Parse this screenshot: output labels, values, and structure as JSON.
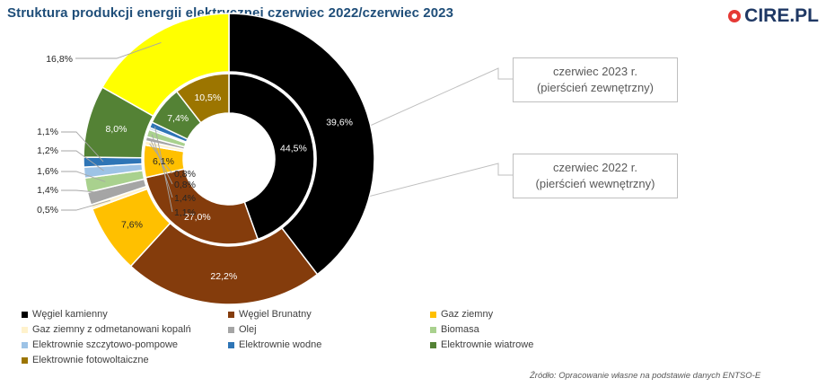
{
  "title": "Struktura produkcji energii elektrycznej  czerwiec 2022/czerwiec 2023",
  "logo": {
    "text": "CIRE.PL",
    "accent_color": "#e53935",
    "icon": "cire-logo-dot-icon"
  },
  "source": "Źródło: Opracowanie własne na podstawie danych ENTSO-E",
  "callouts": {
    "outer": {
      "line1": "czerwiec 2023 r.",
      "line2": "(pierścień zewnętrzny)"
    },
    "inner": {
      "line1": "czerwiec 2022 r.",
      "line2": "(pierścień wewnętrzny)"
    }
  },
  "chart_data": {
    "type": "pie",
    "subtype": "donut-two-rings",
    "title": "Struktura produkcji energii elektrycznej  czerwiec 2022/czerwiec 2023",
    "categories": [
      "Węgiel kamienny",
      "Węgiel Brunatny",
      "Gaz  ziemny",
      "Gaz ziemny z odmetanowani kopalń",
      "Olej",
      "Biomasa",
      "Elektrownie szczytowo-pompowe",
      "Elektrownie wodne",
      "Elektrownie wiatrowe",
      "Elektrownie fotowoltaiczne"
    ],
    "colors": [
      "#000000",
      "#843c0c",
      "#ffc000",
      "#fff2cc",
      "#a5a5a5",
      "#a9d18e",
      "#9dc3e6",
      "#2e75b6",
      "#548235",
      "#9c7500"
    ],
    "outer_ring_color_override": {
      "Elektrownie fotowoltaiczne": "#ffff00"
    },
    "series": [
      {
        "name": "czerwiec 2023 r. (pierścień zewnętrzny)",
        "ring": "outer",
        "values": [
          39.6,
          22.2,
          7.6,
          0.5,
          1.4,
          1.6,
          1.2,
          1.1,
          8.0,
          16.8
        ],
        "labels": [
          "39,6%",
          "22,2%",
          "7,6%",
          "0,5%",
          "1,4%",
          "1,6%",
          "1,2%",
          "1,1%",
          "8,0%",
          "16,8%"
        ]
      },
      {
        "name": "czerwiec 2022 r. (pierścień wewnętrzny)",
        "ring": "inner",
        "values": [
          44.5,
          27.0,
          6.1,
          0.8,
          0.8,
          1.4,
          0.4,
          1.1,
          7.4,
          10.5
        ],
        "labels": [
          "44,5%",
          "27,0%",
          "6,1%",
          "0,8%",
          "0,8%",
          "1,4%",
          "",
          "1,1%",
          "7,4%",
          "10,5%"
        ]
      }
    ],
    "legend_position": "bottom"
  }
}
